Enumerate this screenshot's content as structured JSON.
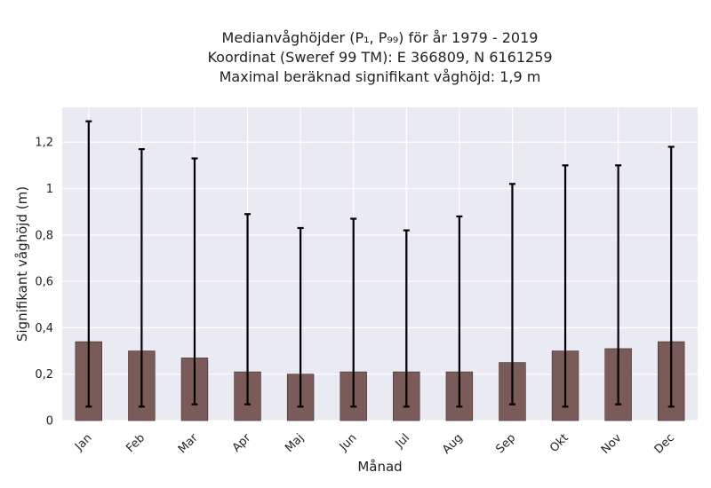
{
  "chart_data": {
    "type": "bar",
    "title_lines": [
      "Medianvåghöjder (P₁, P₉₉) för år 1979 - 2019",
      "Koordinat (Sweref 99 TM): E 366809, N 6161259",
      "Maximal beräknad signifikant våghöjd: 1,9 m"
    ],
    "xlabel": "Månad",
    "ylabel": "Signifikant våghöjd (m)",
    "categories": [
      "Jan",
      "Feb",
      "Mar",
      "Apr",
      "Maj",
      "Jun",
      "Jul",
      "Aug",
      "Sep",
      "Okt",
      "Nov",
      "Dec"
    ],
    "values": [
      0.34,
      0.3,
      0.27,
      0.21,
      0.2,
      0.21,
      0.21,
      0.21,
      0.25,
      0.3,
      0.31,
      0.34
    ],
    "p1": [
      0.06,
      0.06,
      0.07,
      0.07,
      0.06,
      0.06,
      0.06,
      0.06,
      0.07,
      0.06,
      0.07,
      0.06
    ],
    "p99": [
      1.29,
      1.17,
      1.13,
      0.89,
      0.83,
      0.87,
      0.82,
      0.88,
      1.02,
      1.1,
      1.1,
      1.18
    ],
    "ylim": [
      0,
      1.35
    ],
    "yticks": [
      0,
      0.2,
      0.4,
      0.6,
      0.8,
      1,
      1.2
    ],
    "ytick_labels": [
      "0",
      "0,2",
      "0,4",
      "0,6",
      "0,8",
      "1",
      "1,2"
    ],
    "grid": true,
    "colors": {
      "background": "#eaeaf2",
      "bar": "#7b5a5a",
      "bar_edge": "#3a2a2a",
      "errorbar": "#000000",
      "grid": "#ffffff"
    }
  }
}
